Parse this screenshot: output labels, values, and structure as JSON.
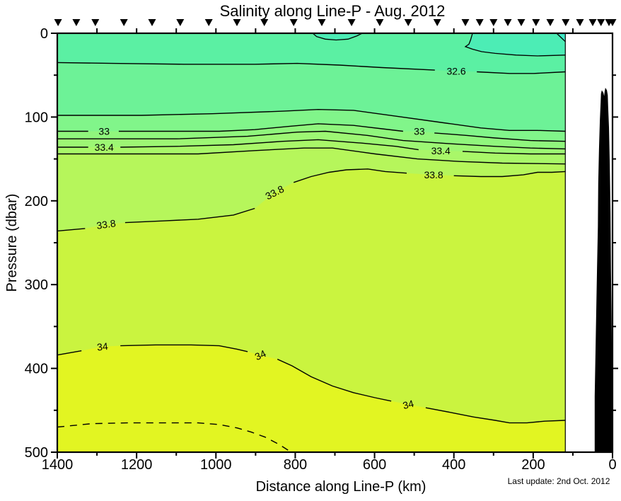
{
  "last_update": "Last update: 2nd Oct. 2012",
  "chart_data": {
    "type": "filled-contour-section",
    "title": "Salinity along Line-P - Aug. 2012",
    "xlabel": "Distance along Line-P (km)",
    "ylabel": "Pressure (dbar)",
    "axes": {
      "x": {
        "range": [
          1400,
          0
        ],
        "reversed": true,
        "major": [
          1400,
          1200,
          1000,
          800,
          600,
          400,
          200,
          0
        ],
        "minor": [
          1300,
          1100,
          900,
          700,
          500,
          300,
          100
        ]
      },
      "y": {
        "range": [
          0,
          500
        ],
        "major": [
          0,
          100,
          200,
          300,
          400,
          500
        ],
        "minor": [
          50,
          150,
          250,
          350,
          450
        ]
      }
    },
    "levels": [
      32.6,
      32.8,
      33,
      33.2,
      33.4,
      33.6,
      33.8,
      34,
      34.2
    ],
    "data_min_km": 119,
    "colors": {
      "surface": "#5BF0A3",
      "coastal_fresh": "#4CEDB5",
      "corner_fresh": "#3FEAC7",
      "bathymetry": "#000000"
    },
    "station_markers_km": [
      1398,
      1352,
      1304,
      1232,
      1161,
      1090,
      1018,
      947,
      878,
      804,
      733,
      658,
      587,
      515,
      442,
      371,
      335,
      300,
      264,
      230,
      193,
      157,
      118,
      82,
      50,
      29,
      9,
      0
    ],
    "surface_features": {
      "lens": [
        [
          756,
          0
        ],
        [
          746,
          4
        ],
        [
          724,
          7
        ],
        [
          697,
          8
        ],
        [
          667,
          7
        ],
        [
          644,
          3
        ],
        [
          631,
          0
        ]
      ],
      "coastal": [
        [
          353,
          0
        ],
        [
          358,
          8
        ],
        [
          362,
          13
        ],
        [
          371,
          16
        ],
        [
          353,
          19
        ],
        [
          330,
          22
        ],
        [
          296,
          24
        ],
        [
          243,
          26
        ],
        [
          189,
          27
        ],
        [
          119,
          26
        ]
      ],
      "corner": [
        [
          141,
          0
        ],
        [
          130,
          5
        ],
        [
          119,
          10
        ]
      ]
    },
    "contours": [
      {
        "level": "32.6",
        "fill": "#6DF297",
        "dashed": false,
        "pts": [
          [
            1400,
            35
          ],
          [
            1259,
            36
          ],
          [
            1081,
            37
          ],
          [
            902,
            37
          ],
          [
            795,
            36
          ],
          [
            688,
            38
          ],
          [
            581,
            41
          ],
          [
            448,
            44
          ],
          [
            394,
            45
          ],
          [
            342,
            46
          ],
          [
            260,
            48
          ],
          [
            198,
            48
          ],
          [
            119,
            46
          ]
        ],
        "segs": [
          [
            0,
            7
          ],
          [
            9,
            12
          ]
        ],
        "labels": [
          {
            "text": "32.6",
            "km": 394,
            "dbar": 45,
            "rot": 0
          }
        ]
      },
      {
        "level": "32.8",
        "fill": "#81F58A",
        "dashed": false,
        "pts": [
          [
            1400,
            98
          ],
          [
            1188,
            98
          ],
          [
            1009,
            96
          ],
          [
            831,
            93
          ],
          [
            742,
            91
          ],
          [
            653,
            92
          ],
          [
            546,
            99
          ],
          [
            439,
            106
          ],
          [
            332,
            113
          ],
          [
            260,
            116
          ],
          [
            189,
            116
          ],
          [
            119,
            117
          ]
        ],
        "segs": [
          [
            0,
            11
          ]
        ],
        "labels": []
      },
      {
        "level": "33",
        "fill": "#90F67D",
        "dashed": false,
        "pts": [
          [
            1400,
            117
          ],
          [
            1322,
            117
          ],
          [
            1282,
            117
          ],
          [
            1245,
            117
          ],
          [
            1099,
            117
          ],
          [
            992,
            117
          ],
          [
            902,
            115
          ],
          [
            813,
            111
          ],
          [
            742,
            108
          ],
          [
            653,
            110
          ],
          [
            581,
            114
          ],
          [
            528,
            117
          ],
          [
            487,
            117
          ],
          [
            449,
            119
          ],
          [
            367,
            122
          ],
          [
            296,
            125
          ],
          [
            207,
            128
          ],
          [
            119,
            129
          ]
        ],
        "segs": [
          [
            0,
            1
          ],
          [
            3,
            11
          ],
          [
            13,
            17
          ]
        ],
        "labels": [
          {
            "text": "33",
            "km": 1282,
            "dbar": 117,
            "rot": 0
          },
          {
            "text": "33",
            "km": 487,
            "dbar": 117,
            "rot": 0
          }
        ]
      },
      {
        "level": "33.2",
        "fill": "#9DF774",
        "dashed": false,
        "pts": [
          [
            1400,
            126
          ],
          [
            1277,
            126
          ],
          [
            1099,
            126
          ],
          [
            920,
            123
          ],
          [
            795,
            118
          ],
          [
            724,
            117
          ],
          [
            617,
            122
          ],
          [
            528,
            128
          ],
          [
            403,
            132
          ],
          [
            296,
            135
          ],
          [
            207,
            137
          ],
          [
            119,
            138
          ]
        ],
        "segs": [
          [
            0,
            11
          ]
        ],
        "labels": []
      },
      {
        "level": "33.4",
        "fill": "#A9F769",
        "dashed": false,
        "pts": [
          [
            1400,
            136
          ],
          [
            1322,
            136
          ],
          [
            1282,
            136
          ],
          [
            1241,
            136
          ],
          [
            1099,
            135
          ],
          [
            956,
            133
          ],
          [
            831,
            129
          ],
          [
            742,
            127
          ],
          [
            635,
            131
          ],
          [
            546,
            135
          ],
          [
            489,
            139
          ],
          [
            433,
            140
          ],
          [
            378,
            141
          ],
          [
            296,
            143
          ],
          [
            207,
            144
          ],
          [
            119,
            144
          ]
        ],
        "segs": [
          [
            0,
            1
          ],
          [
            3,
            10
          ],
          [
            12,
            15
          ]
        ],
        "labels": [
          {
            "text": "33.4",
            "km": 1282,
            "dbar": 136,
            "rot": 0
          },
          {
            "text": "33.4",
            "km": 433,
            "dbar": 140,
            "rot": 0
          }
        ]
      },
      {
        "level": "33.6",
        "fill": "#B6F65B",
        "dashed": false,
        "pts": [
          [
            1400,
            144
          ],
          [
            1223,
            144
          ],
          [
            1045,
            144
          ],
          [
            902,
            140
          ],
          [
            778,
            137
          ],
          [
            706,
            137
          ],
          [
            599,
            144
          ],
          [
            492,
            150
          ],
          [
            385,
            153
          ],
          [
            278,
            155
          ],
          [
            119,
            156
          ]
        ],
        "segs": [
          [
            0,
            10
          ]
        ],
        "labels": []
      },
      {
        "level": "33.8",
        "fill": "#CAF43F",
        "dashed": false,
        "pts": [
          [
            1400,
            236
          ],
          [
            1330,
            233
          ],
          [
            1277,
            228
          ],
          [
            1229,
            226
          ],
          [
            1134,
            224
          ],
          [
            1045,
            222
          ],
          [
            956,
            217
          ],
          [
            902,
            209
          ],
          [
            852,
            190
          ],
          [
            804,
            178
          ],
          [
            760,
            171
          ],
          [
            715,
            166
          ],
          [
            671,
            163
          ],
          [
            617,
            162
          ],
          [
            573,
            165
          ],
          [
            519,
            167
          ],
          [
            451,
            169
          ],
          [
            400,
            170
          ],
          [
            332,
            171
          ],
          [
            278,
            171
          ],
          [
            225,
            169
          ],
          [
            189,
            166
          ],
          [
            153,
            166
          ],
          [
            119,
            165
          ]
        ],
        "segs": [
          [
            0,
            1
          ],
          [
            3,
            7
          ],
          [
            9,
            15
          ],
          [
            17,
            23
          ]
        ],
        "labels": [
          {
            "text": "33.8",
            "km": 1277,
            "dbar": 228,
            "rot": -8
          },
          {
            "text": "33.8",
            "km": 852,
            "dbar": 190,
            "rot": -27
          },
          {
            "text": "33.8",
            "km": 451,
            "dbar": 169,
            "rot": 0
          }
        ]
      },
      {
        "level": "34",
        "fill": "#E2F522",
        "dashed": false,
        "pts": [
          [
            1400,
            384
          ],
          [
            1339,
            379
          ],
          [
            1286,
            374
          ],
          [
            1241,
            373
          ],
          [
            1152,
            372
          ],
          [
            1063,
            372
          ],
          [
            992,
            373
          ],
          [
            947,
            377
          ],
          [
            920,
            380
          ],
          [
            888,
            384
          ],
          [
            845,
            389
          ],
          [
            808,
            397
          ],
          [
            760,
            410
          ],
          [
            706,
            421
          ],
          [
            653,
            429
          ],
          [
            599,
            435
          ],
          [
            558,
            439
          ],
          [
            515,
            443
          ],
          [
            471,
            447
          ],
          [
            403,
            453
          ],
          [
            350,
            458
          ],
          [
            296,
            462
          ],
          [
            260,
            465
          ],
          [
            216,
            465
          ],
          [
            171,
            463
          ],
          [
            119,
            462
          ]
        ],
        "segs": [
          [
            0,
            1
          ],
          [
            3,
            8
          ],
          [
            10,
            16
          ],
          [
            18,
            25
          ]
        ],
        "labels": [
          {
            "text": "34",
            "km": 1286,
            "dbar": 374,
            "rot": -6
          },
          {
            "text": "34",
            "km": 888,
            "dbar": 384,
            "rot": -25
          },
          {
            "text": "34",
            "km": 515,
            "dbar": 443,
            "rot": -14
          }
        ]
      },
      {
        "level": "34.2",
        "fill": null,
        "dashed": true,
        "pts": [
          [
            1400,
            470
          ],
          [
            1313,
            466
          ],
          [
            1223,
            465
          ],
          [
            1134,
            465
          ],
          [
            1045,
            465
          ],
          [
            992,
            467
          ],
          [
            947,
            471
          ],
          [
            911,
            476
          ],
          [
            876,
            482
          ],
          [
            840,
            491
          ],
          [
            817,
            498
          ]
        ],
        "segs": [
          [
            0,
            10
          ]
        ],
        "labels": []
      }
    ],
    "bathymetry_km_dbar": [
      [
        45,
        500
      ],
      [
        45,
        433
      ],
      [
        43,
        383
      ],
      [
        41,
        332
      ],
      [
        39,
        281
      ],
      [
        37,
        231
      ],
      [
        36,
        180
      ],
      [
        34,
        138
      ],
      [
        32,
        104
      ],
      [
        30,
        83
      ],
      [
        29,
        72
      ],
      [
        27,
        68
      ],
      [
        23,
        71
      ],
      [
        21,
        75
      ],
      [
        20,
        70
      ],
      [
        18,
        65
      ],
      [
        14,
        68
      ],
      [
        12,
        74
      ],
      [
        11,
        87
      ],
      [
        9,
        112
      ],
      [
        7,
        155
      ],
      [
        5,
        214
      ],
      [
        4,
        281
      ],
      [
        2,
        357
      ],
      [
        0,
        500
      ]
    ]
  }
}
